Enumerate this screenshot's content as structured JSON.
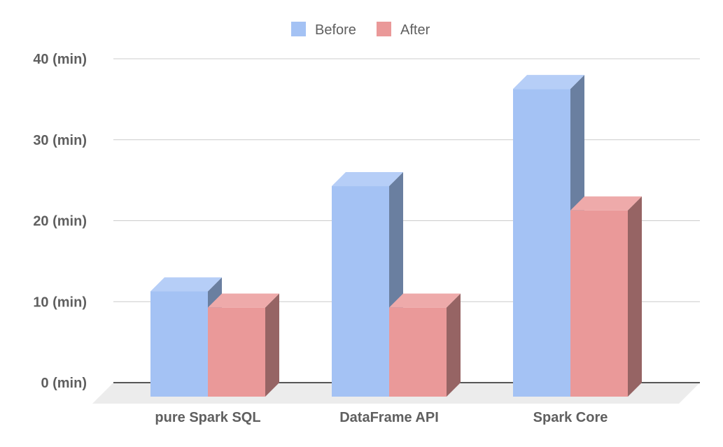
{
  "chart_data": {
    "type": "bar",
    "style": "3d-clustered-column",
    "categories": [
      "pure Spark SQL",
      "DataFrame API",
      "Spark Core"
    ],
    "series": [
      {
        "name": "Before",
        "values": [
          13,
          26,
          38
        ],
        "color": "#a4c2f4",
        "top_color": "#b6cef7",
        "side_color": "#6a7fa0"
      },
      {
        "name": "After",
        "values": [
          11,
          11,
          23
        ],
        "color": "#ea9999",
        "top_color": "#eeaaaa",
        "side_color": "#966464"
      }
    ],
    "y_ticks": [
      "0 (min)",
      "10 (min)",
      "20 (min)",
      "30 (min)",
      "40 (min)"
    ],
    "ylim": [
      0,
      40
    ],
    "grid": true,
    "legend_position": "top-center",
    "gridline_color": "#cccccc",
    "floor_color": "#ececec"
  }
}
